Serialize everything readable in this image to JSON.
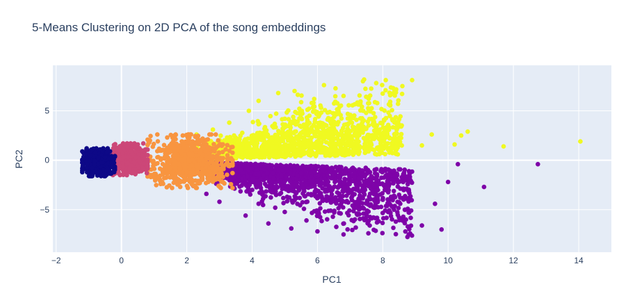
{
  "chart_data": {
    "type": "scatter",
    "title": "5-Means Clustering on 2D PCA of the song embeddings",
    "xlabel": "PC1",
    "ylabel": "PC2",
    "xlim": [
      -2.1,
      15.0
    ],
    "ylim": [
      -9.3,
      9.6
    ],
    "x_ticks": [
      -2,
      0,
      2,
      4,
      6,
      8,
      10,
      12,
      14
    ],
    "y_ticks": [
      -5,
      0,
      5
    ],
    "grid": true,
    "legend": "none",
    "plot_background": "#e5ecf6",
    "clusters": [
      {
        "cluster": 0,
        "color": "#0d0887",
        "approx_x_range": [
          -1.2,
          -0.2
        ],
        "approx_y_range": [
          -1.6,
          1.2
        ],
        "points": [
          [
            -1.15,
            0.2
          ],
          [
            -1.05,
            -0.4
          ],
          [
            -0.95,
            0.5
          ],
          [
            -0.9,
            -0.8
          ],
          [
            -0.8,
            0.8
          ],
          [
            -0.75,
            -1.3
          ],
          [
            -0.65,
            1.1
          ],
          [
            -0.6,
            -0.2
          ],
          [
            -0.5,
            0.3
          ],
          [
            -0.45,
            -1.0
          ],
          [
            -0.35,
            0.9
          ],
          [
            -0.3,
            -0.6
          ],
          [
            -0.25,
            0.1
          ]
        ]
      },
      {
        "cluster": 1,
        "color": "#cc4778",
        "approx_x_range": [
          -0.3,
          0.8
        ],
        "approx_y_range": [
          -1.5,
          1.7
        ],
        "points": [
          [
            -0.25,
            1.2
          ],
          [
            -0.2,
            -1.0
          ],
          [
            -0.1,
            0.4
          ],
          [
            0.05,
            -1.4
          ],
          [
            0.1,
            1.5
          ],
          [
            0.2,
            -0.3
          ],
          [
            0.3,
            0.9
          ],
          [
            0.4,
            -1.2
          ],
          [
            0.5,
            1.6
          ],
          [
            0.55,
            0.0
          ],
          [
            0.65,
            -0.8
          ],
          [
            0.75,
            1.1
          ]
        ]
      },
      {
        "cluster": 2,
        "color": "#f89540",
        "approx_x_range": [
          0.8,
          3.4
        ],
        "approx_y_range": [
          -2.8,
          2.6
        ],
        "points": [
          [
            0.85,
            1.8
          ],
          [
            0.9,
            -1.7
          ],
          [
            1.1,
            0.3
          ],
          [
            1.2,
            -2.4
          ],
          [
            1.4,
            2.3
          ],
          [
            1.5,
            -0.8
          ],
          [
            1.7,
            1.0
          ],
          [
            1.8,
            -2.7
          ],
          [
            2.0,
            2.5
          ],
          [
            2.1,
            -1.5
          ],
          [
            2.3,
            0.5
          ],
          [
            2.4,
            -2.3
          ],
          [
            2.6,
            1.6
          ],
          [
            2.8,
            -0.9
          ],
          [
            3.0,
            0.2
          ],
          [
            3.2,
            -0.4
          ]
        ]
      },
      {
        "cluster": 3,
        "color": "#f0f921",
        "approx_x_range": [
          2.1,
          14.1
        ],
        "approx_y_range": [
          0.0,
          8.2
        ],
        "points": [
          [
            2.3,
            2.6
          ],
          [
            2.8,
            3.1
          ],
          [
            3.3,
            3.8
          ],
          [
            3.6,
            2.0
          ],
          [
            3.9,
            5.0
          ],
          [
            4.2,
            6.0
          ],
          [
            4.5,
            1.5
          ],
          [
            4.8,
            6.8
          ],
          [
            5.0,
            4.2
          ],
          [
            5.3,
            7.0
          ],
          [
            5.6,
            2.8
          ],
          [
            5.9,
            6.2
          ],
          [
            6.2,
            7.6
          ],
          [
            6.5,
            3.5
          ],
          [
            6.8,
            6.5
          ],
          [
            7.1,
            1.2
          ],
          [
            7.4,
            5.0
          ],
          [
            7.8,
            7.8
          ],
          [
            8.2,
            3.3
          ],
          [
            8.6,
            7.5
          ],
          [
            8.9,
            8.1
          ],
          [
            9.2,
            1.5
          ],
          [
            9.5,
            2.6
          ],
          [
            10.2,
            1.6
          ],
          [
            10.6,
            2.9
          ],
          [
            10.4,
            2.5
          ],
          [
            11.7,
            1.4
          ],
          [
            14.05,
            1.9
          ]
        ]
      },
      {
        "cluster": 4,
        "color": "#7e03a8",
        "approx_x_range": [
          2.0,
          12.8
        ],
        "approx_y_range": [
          -7.8,
          0.0
        ],
        "points": [
          [
            2.2,
            -2.6
          ],
          [
            2.6,
            -3.4
          ],
          [
            3.0,
            -4.2
          ],
          [
            3.4,
            -2.0
          ],
          [
            3.8,
            -5.6
          ],
          [
            4.2,
            -4.4
          ],
          [
            4.5,
            -6.4
          ],
          [
            4.9,
            -1.6
          ],
          [
            5.2,
            -6.9
          ],
          [
            5.6,
            -3.6
          ],
          [
            6.0,
            -7.2
          ],
          [
            6.4,
            -5.1
          ],
          [
            6.8,
            -7.5
          ],
          [
            7.2,
            -2.6
          ],
          [
            7.6,
            -6.6
          ],
          [
            8.0,
            -4.0
          ],
          [
            8.4,
            -6.2
          ],
          [
            8.8,
            -3.1
          ],
          [
            9.2,
            -6.6
          ],
          [
            9.6,
            -4.4
          ],
          [
            9.8,
            -7.0
          ],
          [
            10.0,
            -2.2
          ],
          [
            10.3,
            -0.4
          ],
          [
            11.1,
            -2.7
          ],
          [
            12.75,
            -0.4
          ]
        ]
      }
    ]
  }
}
